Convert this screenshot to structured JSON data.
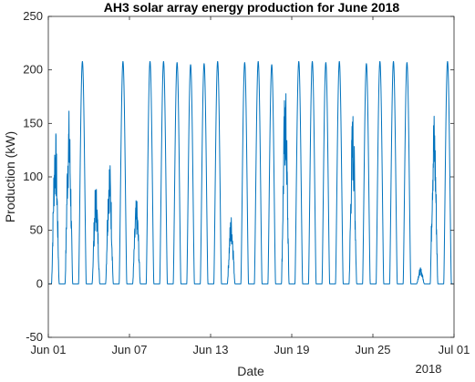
{
  "chart_data": {
    "type": "line",
    "title": "AH3 solar array energy production for June 2018",
    "xlabel": "Date",
    "ylabel": "Production (kW)",
    "year_label": "2018",
    "ylim": [
      -50,
      250
    ],
    "yticks": [
      -50,
      0,
      50,
      100,
      150,
      200,
      250
    ],
    "xlim": [
      "2018-06-01",
      "2018-07-01"
    ],
    "xticks": [
      {
        "date": "2018-06-01",
        "label": "Jun 01"
      },
      {
        "date": "2018-06-07",
        "label": "Jun 07"
      },
      {
        "date": "2018-06-13",
        "label": "Jun 13"
      },
      {
        "date": "2018-06-19",
        "label": "Jun 19"
      },
      {
        "date": "2018-06-25",
        "label": "Jun 25"
      },
      {
        "date": "2018-07-01",
        "label": "Jul 01"
      }
    ],
    "grid": false,
    "line_color": "#0072BD",
    "series": [
      {
        "values": [
          {
            "date": "2018-06-01",
            "peak": 148
          },
          {
            "date": "2018-06-02",
            "peak": 165
          },
          {
            "date": "2018-06-03",
            "peak": 208
          },
          {
            "date": "2018-06-04",
            "peak": 95
          },
          {
            "date": "2018-06-05",
            "peak": 120
          },
          {
            "date": "2018-06-06",
            "peak": 208
          },
          {
            "date": "2018-06-07",
            "peak": 80
          },
          {
            "date": "2018-06-08",
            "peak": 208
          },
          {
            "date": "2018-06-09",
            "peak": 208
          },
          {
            "date": "2018-06-10",
            "peak": 207
          },
          {
            "date": "2018-06-11",
            "peak": 205
          },
          {
            "date": "2018-06-12",
            "peak": 206
          },
          {
            "date": "2018-06-13",
            "peak": 208
          },
          {
            "date": "2018-06-14",
            "peak": 65
          },
          {
            "date": "2018-06-15",
            "peak": 207
          },
          {
            "date": "2018-06-16",
            "peak": 208
          },
          {
            "date": "2018-06-17",
            "peak": 205
          },
          {
            "date": "2018-06-18",
            "peak": 190
          },
          {
            "date": "2018-06-19",
            "peak": 208
          },
          {
            "date": "2018-06-20",
            "peak": 208
          },
          {
            "date": "2018-06-21",
            "peak": 207
          },
          {
            "date": "2018-06-22",
            "peak": 208
          },
          {
            "date": "2018-06-23",
            "peak": 165
          },
          {
            "date": "2018-06-24",
            "peak": 206
          },
          {
            "date": "2018-06-25",
            "peak": 208
          },
          {
            "date": "2018-06-26",
            "peak": 208
          },
          {
            "date": "2018-06-27",
            "peak": 207
          },
          {
            "date": "2018-06-28",
            "peak": 15
          },
          {
            "date": "2018-06-29",
            "peak": 165
          },
          {
            "date": "2018-06-30",
            "peak": 208
          }
        ]
      }
    ]
  }
}
